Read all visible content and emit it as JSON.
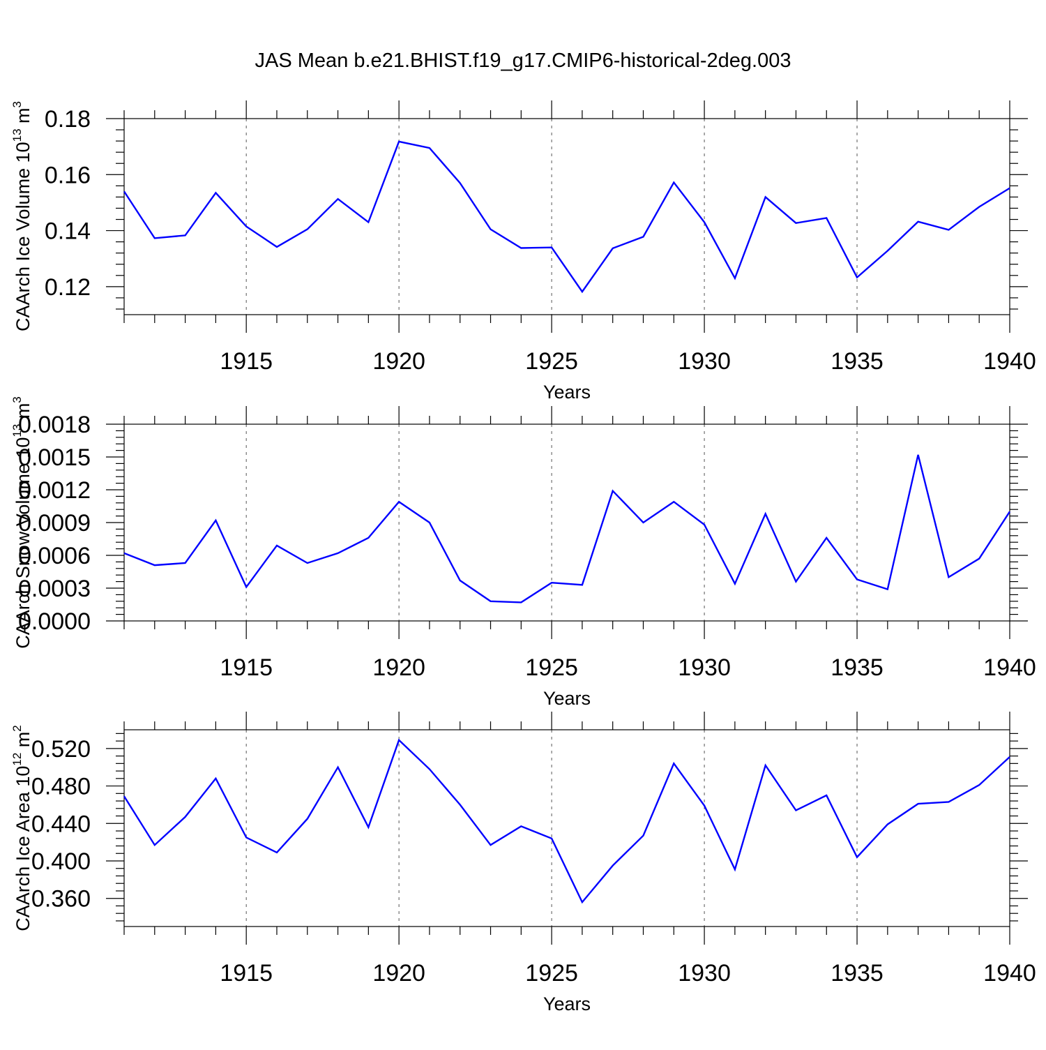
{
  "title": "JAS Mean b.e21.BHIST.f19_g17.CMIP6-historical-2deg.003",
  "colors": {
    "line": "#0000ff",
    "axis": "#000000",
    "grid": "#555555",
    "background": "#ffffff"
  },
  "chart_data": [
    {
      "type": "line",
      "title": "JAS Mean b.e21.BHIST.f19_g17.CMIP6-historical-2deg.003",
      "xlabel": "Years",
      "ylabel": "CAArch Ice Volume 10",
      "ylabel_sup": "13",
      "ylabel_unit": " m",
      "ylabel_unit_sup": "3",
      "xlim": [
        1911,
        1940
      ],
      "ylim": [
        0.11,
        0.18
      ],
      "xticks": [
        1915,
        1920,
        1925,
        1930,
        1935,
        1940
      ],
      "xtick_labels": [
        "1915",
        "1920",
        "1925",
        "1930",
        "1935",
        "1940"
      ],
      "yticks": [
        0.12,
        0.14,
        0.16,
        0.18
      ],
      "ytick_labels": [
        "0.12",
        "0.14",
        "0.16",
        "0.18"
      ],
      "grid": "vertical dashed at major x ticks",
      "series": [
        {
          "name": "CAArch Ice Volume",
          "x": [
            1911,
            1912,
            1913,
            1914,
            1915,
            1916,
            1917,
            1918,
            1919,
            1920,
            1921,
            1922,
            1923,
            1924,
            1925,
            1926,
            1927,
            1928,
            1929,
            1930,
            1931,
            1932,
            1933,
            1934,
            1935,
            1936,
            1937,
            1938,
            1939,
            1940
          ],
          "values": [
            0.154,
            0.1373,
            0.1383,
            0.1535,
            0.1415,
            0.1342,
            0.1405,
            0.1513,
            0.143,
            0.1718,
            0.1695,
            0.157,
            0.1405,
            0.1338,
            0.134,
            0.1182,
            0.1337,
            0.1378,
            0.1572,
            0.143,
            0.123,
            0.152,
            0.1427,
            0.1445,
            0.1233,
            0.1328,
            0.1432,
            0.1403,
            0.1485,
            0.1552
          ]
        }
      ]
    },
    {
      "type": "line",
      "xlabel": "Years",
      "ylabel": "CAArch Snow Volume 10",
      "ylabel_sup": "13",
      "ylabel_unit": " m",
      "ylabel_unit_sup": "3",
      "xlim": [
        1911,
        1940
      ],
      "ylim": [
        0.0,
        0.0018
      ],
      "xticks": [
        1915,
        1920,
        1925,
        1930,
        1935,
        1940
      ],
      "xtick_labels": [
        "1915",
        "1920",
        "1925",
        "1930",
        "1935",
        "1940"
      ],
      "yticks": [
        0.0,
        0.0003,
        0.0006,
        0.0009,
        0.0012,
        0.0015,
        0.0018
      ],
      "ytick_labels": [
        "0.0000",
        "0.0003",
        "0.0006",
        "0.0009",
        "0.0012",
        "0.0015",
        "0.0018"
      ],
      "grid": "vertical dashed at major x ticks",
      "series": [
        {
          "name": "CAArch Snow Volume",
          "x": [
            1911,
            1912,
            1913,
            1914,
            1915,
            1916,
            1917,
            1918,
            1919,
            1920,
            1921,
            1922,
            1923,
            1924,
            1925,
            1926,
            1927,
            1928,
            1929,
            1930,
            1931,
            1932,
            1933,
            1934,
            1935,
            1936,
            1937,
            1938,
            1939,
            1940
          ],
          "values": [
            0.00062,
            0.00051,
            0.00053,
            0.00092,
            0.00031,
            0.00069,
            0.00053,
            0.00062,
            0.00076,
            0.00109,
            0.0009,
            0.00037,
            0.00018,
            0.00017,
            0.00035,
            0.00033,
            0.00119,
            0.0009,
            0.00109,
            0.00088,
            0.00034,
            0.00098,
            0.00036,
            0.00076,
            0.00038,
            0.00029,
            0.00152,
            0.0004,
            0.00057,
            0.001
          ]
        }
      ]
    },
    {
      "type": "line",
      "xlabel": "Years",
      "ylabel": "CAArch Ice Area 10",
      "ylabel_sup": "12",
      "ylabel_unit": " m",
      "ylabel_unit_sup": "2",
      "xlim": [
        1911,
        1940
      ],
      "ylim": [
        0.33,
        0.54
      ],
      "xticks": [
        1915,
        1920,
        1925,
        1930,
        1935,
        1940
      ],
      "xtick_labels": [
        "1915",
        "1920",
        "1925",
        "1930",
        "1935",
        "1940"
      ],
      "yticks": [
        0.36,
        0.4,
        0.44,
        0.48,
        0.52
      ],
      "ytick_labels": [
        "0.360",
        "0.400",
        "0.440",
        "0.480",
        "0.520"
      ],
      "grid": "vertical dashed at major x ticks",
      "series": [
        {
          "name": "CAArch Ice Area",
          "x": [
            1911,
            1912,
            1913,
            1914,
            1915,
            1916,
            1917,
            1918,
            1919,
            1920,
            1921,
            1922,
            1923,
            1924,
            1925,
            1926,
            1927,
            1928,
            1929,
            1930,
            1931,
            1932,
            1933,
            1934,
            1935,
            1936,
            1937,
            1938,
            1939,
            1940
          ],
          "values": [
            0.469,
            0.417,
            0.447,
            0.488,
            0.425,
            0.409,
            0.445,
            0.5,
            0.436,
            0.529,
            0.498,
            0.46,
            0.417,
            0.437,
            0.424,
            0.356,
            0.395,
            0.427,
            0.504,
            0.459,
            0.391,
            0.502,
            0.454,
            0.47,
            0.404,
            0.439,
            0.461,
            0.463,
            0.481,
            0.511
          ]
        }
      ]
    }
  ]
}
